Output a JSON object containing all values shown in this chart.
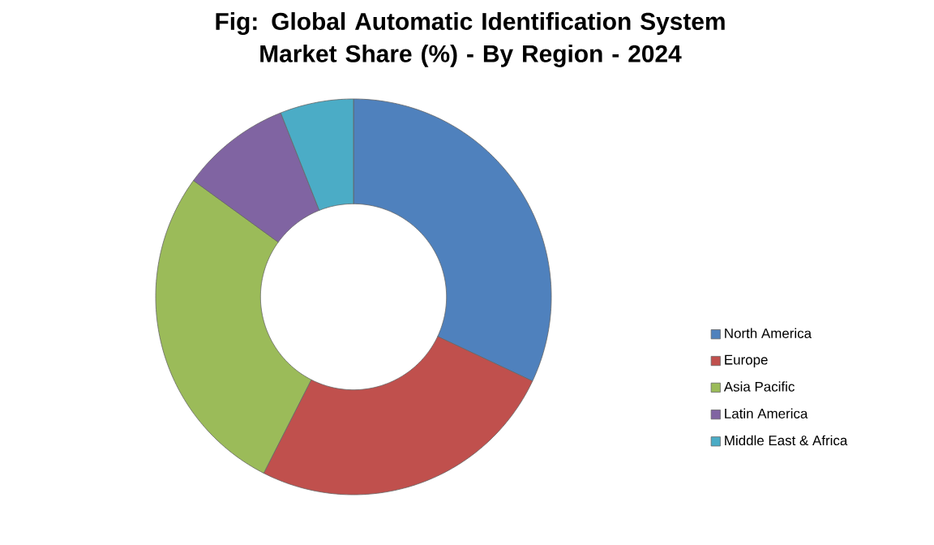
{
  "chart_data": {
    "type": "donut",
    "title": "Fig: Global Automatic Identification System Market Share (%) - By Region - 2024",
    "categories": [
      "North America",
      "Europe",
      "Asia Pacific",
      "Latin America",
      "Middle East & Africa"
    ],
    "values": [
      32,
      25.5,
      27.5,
      9,
      6
    ],
    "colors": [
      "#4f81bd",
      "#c0504d",
      "#9bbb59",
      "#8064a2",
      "#4bacc6"
    ],
    "legend": "right"
  }
}
